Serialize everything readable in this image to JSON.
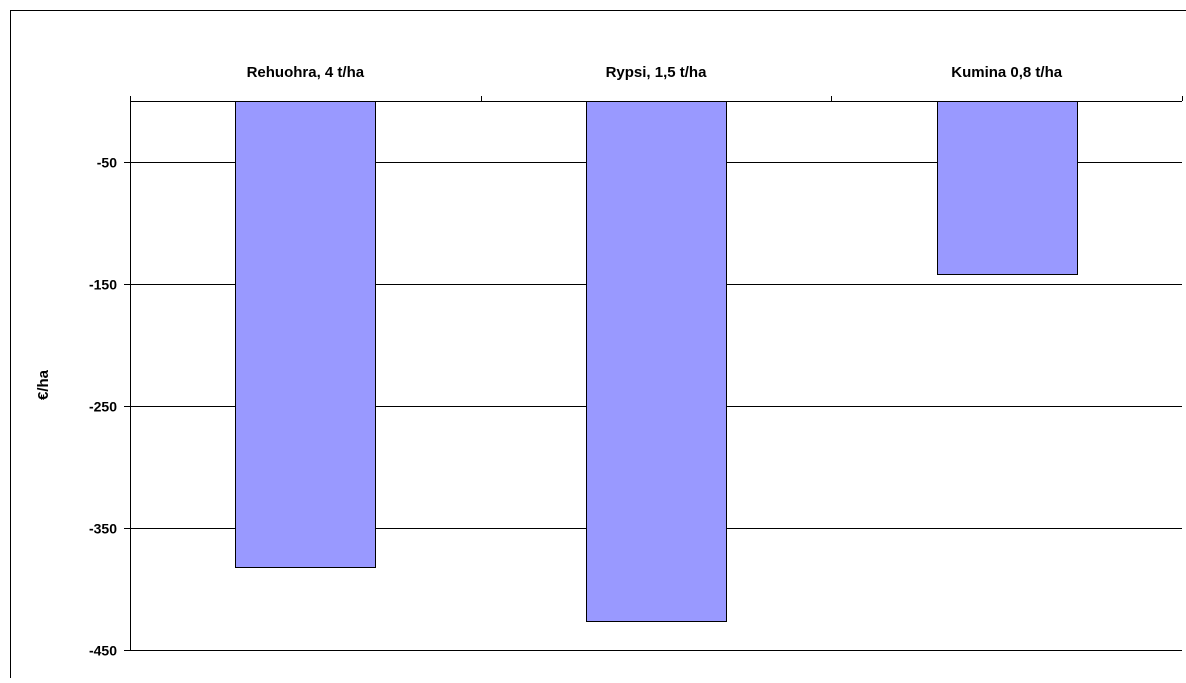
{
  "chart_data": {
    "type": "bar",
    "categories": [
      "Rehuohra, 4 t/ha",
      "Rypsi, 1,5 t/ha",
      "Kumina 0,8 t/ha"
    ],
    "values": [
      -382,
      -426,
      -142
    ],
    "ylabel": "€/ha",
    "ylim": [
      -450,
      0
    ],
    "y_ticks": [
      -50,
      -150,
      -250,
      -350,
      -450
    ],
    "x_tick_position": "top",
    "grid": true,
    "legend": "none",
    "colors": {
      "bar_fill": "#9999FF",
      "bar_stroke": "#000000",
      "grid": "#000000",
      "border": "#000000"
    }
  }
}
